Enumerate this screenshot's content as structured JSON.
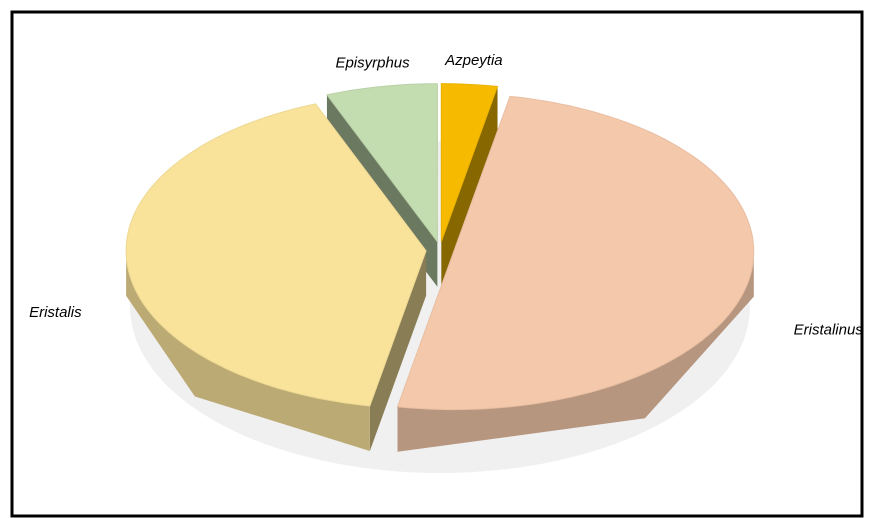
{
  "chart_data": {
    "type": "pie",
    "categories": [
      "Azpeytia",
      "Eristalinus",
      "Eristalis",
      "Episyrphus"
    ],
    "values": [
      3,
      50,
      41,
      6
    ],
    "colors": [
      "#f6bb00",
      "#f4c8aa",
      "#f9e39b",
      "#c3dcb0"
    ]
  }
}
